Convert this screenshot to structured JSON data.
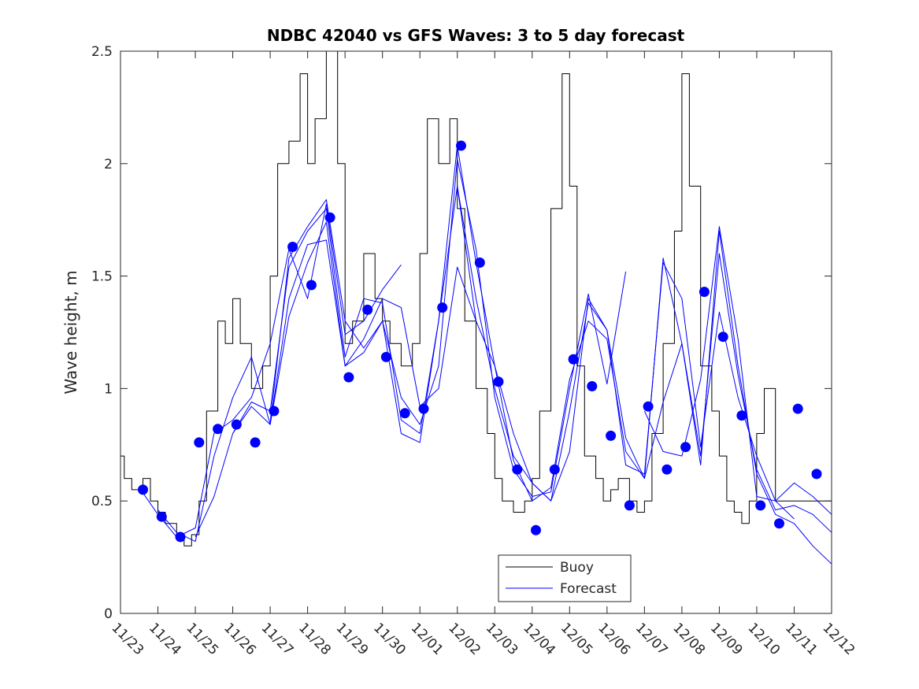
{
  "chart_data": {
    "type": "line",
    "title": "NDBC 42040 vs GFS Waves: 3 to 5 day forecast",
    "xlabel": "",
    "ylabel": "Wave height, m",
    "xlim": [
      0,
      19
    ],
    "ylim": [
      0,
      2.5
    ],
    "grid": false,
    "legend_position": "bottom-center",
    "x_tick_labels": [
      "11/23",
      "11/24",
      "11/25",
      "11/26",
      "11/27",
      "11/28",
      "11/29",
      "11/30",
      "12/01",
      "12/02",
      "12/03",
      "12/04",
      "12/05",
      "12/06",
      "12/07",
      "12/08",
      "12/09",
      "12/10",
      "12/11",
      "12/12"
    ],
    "y_tick_labels": [
      "0",
      "0.5",
      "1",
      "1.5",
      "2",
      "2.5"
    ],
    "y_ticks": [
      0,
      0.5,
      1,
      1.5,
      2,
      2.5
    ],
    "legend": [
      {
        "label": "Buoy",
        "color": "#000000"
      },
      {
        "label": "Forecast",
        "color": "#0000ff"
      }
    ],
    "series": [
      {
        "name": "Buoy",
        "color": "#000000",
        "style": "step",
        "x": [
          0.0,
          0.1,
          0.3,
          0.6,
          0.8,
          1.0,
          1.2,
          1.5,
          1.7,
          1.9,
          2.1,
          2.3,
          2.6,
          2.8,
          3.0,
          3.2,
          3.5,
          3.8,
          4.0,
          4.2,
          4.5,
          4.8,
          5.0,
          5.2,
          5.5,
          5.8,
          6.0,
          6.2,
          6.5,
          6.8,
          7.0,
          7.2,
          7.5,
          7.8,
          8.0,
          8.2,
          8.5,
          8.8,
          9.0,
          9.2,
          9.5,
          9.8,
          10.0,
          10.2,
          10.5,
          10.8,
          11.0,
          11.2,
          11.5,
          11.8,
          12.0,
          12.2,
          12.4,
          12.7,
          12.9,
          13.1,
          13.3,
          13.6,
          13.8,
          14.0,
          14.2,
          14.5,
          14.8,
          15.0,
          15.2,
          15.5,
          15.8,
          16.0,
          16.2,
          16.4,
          16.6,
          16.8,
          17.0,
          17.2,
          17.5,
          17.8,
          18.0,
          18.2,
          18.5,
          18.8,
          19.0
        ],
        "values": [
          0.7,
          0.6,
          0.55,
          0.6,
          0.5,
          0.45,
          0.4,
          0.35,
          0.3,
          0.35,
          0.5,
          0.9,
          1.3,
          1.2,
          1.4,
          1.2,
          1.0,
          1.1,
          1.5,
          2.0,
          2.1,
          2.4,
          2.0,
          2.2,
          2.5,
          2.0,
          1.2,
          1.3,
          1.6,
          1.4,
          1.3,
          1.2,
          1.1,
          1.2,
          1.6,
          2.2,
          2.0,
          2.2,
          1.8,
          1.3,
          1.0,
          0.8,
          0.6,
          0.5,
          0.45,
          0.5,
          0.6,
          0.9,
          1.8,
          2.4,
          1.9,
          1.1,
          0.7,
          0.6,
          0.5,
          0.55,
          0.6,
          0.5,
          0.45,
          0.5,
          0.8,
          1.2,
          1.7,
          2.4,
          1.9,
          1.1,
          0.9,
          0.7,
          0.5,
          0.45,
          0.4,
          0.5,
          0.8,
          1.0,
          0.5,
          0.5,
          0.5,
          0.5,
          0.5,
          0.5,
          0.5
        ]
      },
      {
        "name": "Forecast run 1",
        "color": "#0000ff",
        "style": "line",
        "x": [
          0.5,
          1.0,
          1.5,
          2.0,
          2.5,
          3.0,
          3.5,
          4.0,
          4.5,
          5.0,
          5.5,
          6.0,
          6.5,
          7.0,
          7.5
        ],
        "values": [
          0.56,
          0.44,
          0.34,
          0.38,
          0.8,
          0.86,
          0.96,
          1.2,
          1.62,
          1.4,
          1.82,
          1.24,
          1.3,
          1.44,
          1.55
        ]
      },
      {
        "name": "Forecast run 2",
        "color": "#0000ff",
        "style": "line",
        "x": [
          1.0,
          1.5,
          2.0,
          2.5,
          3.0,
          3.5,
          4.0,
          4.5,
          5.0,
          5.5,
          6.0,
          6.5,
          7.0,
          7.5,
          8.0,
          8.5,
          9.0,
          9.5
        ],
        "values": [
          0.46,
          0.36,
          0.32,
          0.7,
          0.96,
          1.14,
          0.84,
          1.4,
          1.64,
          1.66,
          1.1,
          1.22,
          1.4,
          1.36,
          0.92,
          1.0,
          1.54,
          1.3
        ]
      },
      {
        "name": "Forecast run 3",
        "color": "#0000ff",
        "style": "line",
        "x": [
          2.0,
          2.5,
          3.0,
          3.5,
          4.0,
          4.5,
          5.0,
          5.5,
          6.0,
          6.5,
          7.0,
          7.5,
          8.0,
          8.5,
          9.0,
          9.5,
          10.0,
          10.5,
          11.0,
          11.5,
          12.0,
          12.5,
          13.0,
          13.5
        ],
        "values": [
          0.34,
          0.52,
          0.8,
          0.92,
          0.84,
          1.32,
          1.56,
          1.74,
          1.1,
          1.16,
          1.3,
          0.96,
          0.84,
          1.1,
          2.02,
          1.62,
          0.96,
          0.64,
          0.52,
          0.54,
          1.0,
          1.42,
          1.02,
          1.52
        ]
      },
      {
        "name": "Forecast run 4",
        "color": "#0000ff",
        "style": "line",
        "x": [
          3.0,
          3.5,
          4.0,
          4.5,
          5.0,
          5.5,
          6.0,
          6.5,
          7.0,
          7.5,
          8.0,
          8.5,
          9.0,
          9.5,
          10.0,
          10.5,
          11.0,
          11.5,
          12.0,
          12.5,
          13.0,
          13.5,
          14.0,
          14.5,
          15.0,
          15.5,
          16.0,
          16.5,
          17.0,
          17.5,
          18.0
        ],
        "values": [
          0.8,
          0.94,
          0.9,
          1.54,
          1.7,
          1.8,
          1.14,
          1.4,
          1.38,
          0.86,
          0.8,
          1.3,
          1.9,
          1.4,
          1.0,
          0.7,
          0.58,
          0.5,
          0.9,
          1.38,
          1.26,
          0.66,
          0.62,
          1.56,
          1.4,
          0.74,
          1.34,
          0.96,
          0.7,
          0.5,
          0.42
        ]
      },
      {
        "name": "Forecast run 5",
        "color": "#0000ff",
        "style": "line",
        "x": [
          4.0,
          4.5,
          5.0,
          5.5,
          6.0,
          6.5,
          7.0,
          7.5,
          8.0,
          8.5,
          9.0,
          9.5,
          10.0,
          10.5,
          11.0,
          11.5,
          12.0,
          12.5,
          13.0,
          13.5,
          14.0,
          14.5,
          15.0,
          15.5,
          16.0,
          16.5,
          17.0,
          17.5,
          18.0,
          18.5,
          19.0
        ],
        "values": [
          0.85,
          1.58,
          1.72,
          1.84,
          1.3,
          1.18,
          1.3,
          0.8,
          0.76,
          1.3,
          2.08,
          1.56,
          1.1,
          0.68,
          0.5,
          0.56,
          1.04,
          1.3,
          1.22,
          0.72,
          0.6,
          0.94,
          1.2,
          0.66,
          1.7,
          1.1,
          0.62,
          0.44,
          0.4,
          0.3,
          0.22
        ]
      },
      {
        "name": "Forecast run 6",
        "color": "#0000ff",
        "style": "line",
        "x": [
          9.0,
          9.5,
          10.0,
          10.5,
          11.0,
          11.5,
          12.0,
          12.5,
          13.0,
          13.5,
          14.0,
          14.5,
          15.0,
          15.5,
          16.0,
          16.5,
          17.0,
          17.5,
          18.0,
          18.5,
          19.0
        ],
        "values": [
          1.9,
          1.3,
          1.1,
          0.8,
          0.58,
          0.5,
          0.72,
          1.4,
          1.26,
          0.78,
          0.6,
          1.58,
          1.2,
          0.7,
          1.6,
          1.06,
          0.64,
          0.46,
          0.48,
          0.44,
          0.36
        ]
      },
      {
        "name": "Forecast run 7",
        "color": "#0000ff",
        "style": "line",
        "x": [
          14.0,
          14.5,
          15.0,
          15.5,
          16.0,
          16.5,
          17.0,
          17.5,
          18.0,
          18.5,
          19.0
        ],
        "values": [
          0.9,
          0.72,
          0.7,
          1.04,
          1.72,
          1.22,
          0.52,
          0.5,
          0.58,
          0.52,
          0.44
        ]
      }
    ],
    "markers": {
      "name": "Forecast (analysis points)",
      "color": "#0000ff",
      "x": [
        0.6,
        1.1,
        1.6,
        2.1,
        2.6,
        3.1,
        3.6,
        4.1,
        4.6,
        5.1,
        5.6,
        6.1,
        6.6,
        7.1,
        7.6,
        8.1,
        8.6,
        9.1,
        9.6,
        10.1,
        10.6,
        11.1,
        11.6,
        12.1,
        12.6,
        13.1,
        13.6,
        14.1,
        14.6,
        15.1,
        15.6,
        16.1,
        16.6,
        17.1,
        17.6,
        18.1,
        18.6
      ],
      "values": [
        0.55,
        0.43,
        0.34,
        0.76,
        0.82,
        0.84,
        0.76,
        0.9,
        1.63,
        1.46,
        1.76,
        1.05,
        1.35,
        1.14,
        0.89,
        0.91,
        1.36,
        2.08,
        1.56,
        1.03,
        0.64,
        0.37,
        0.64,
        1.13,
        1.01,
        0.79,
        0.48,
        0.92,
        0.64,
        0.74,
        1.43,
        1.23,
        0.88,
        0.48,
        0.4,
        0.91,
        0.62
      ]
    }
  }
}
